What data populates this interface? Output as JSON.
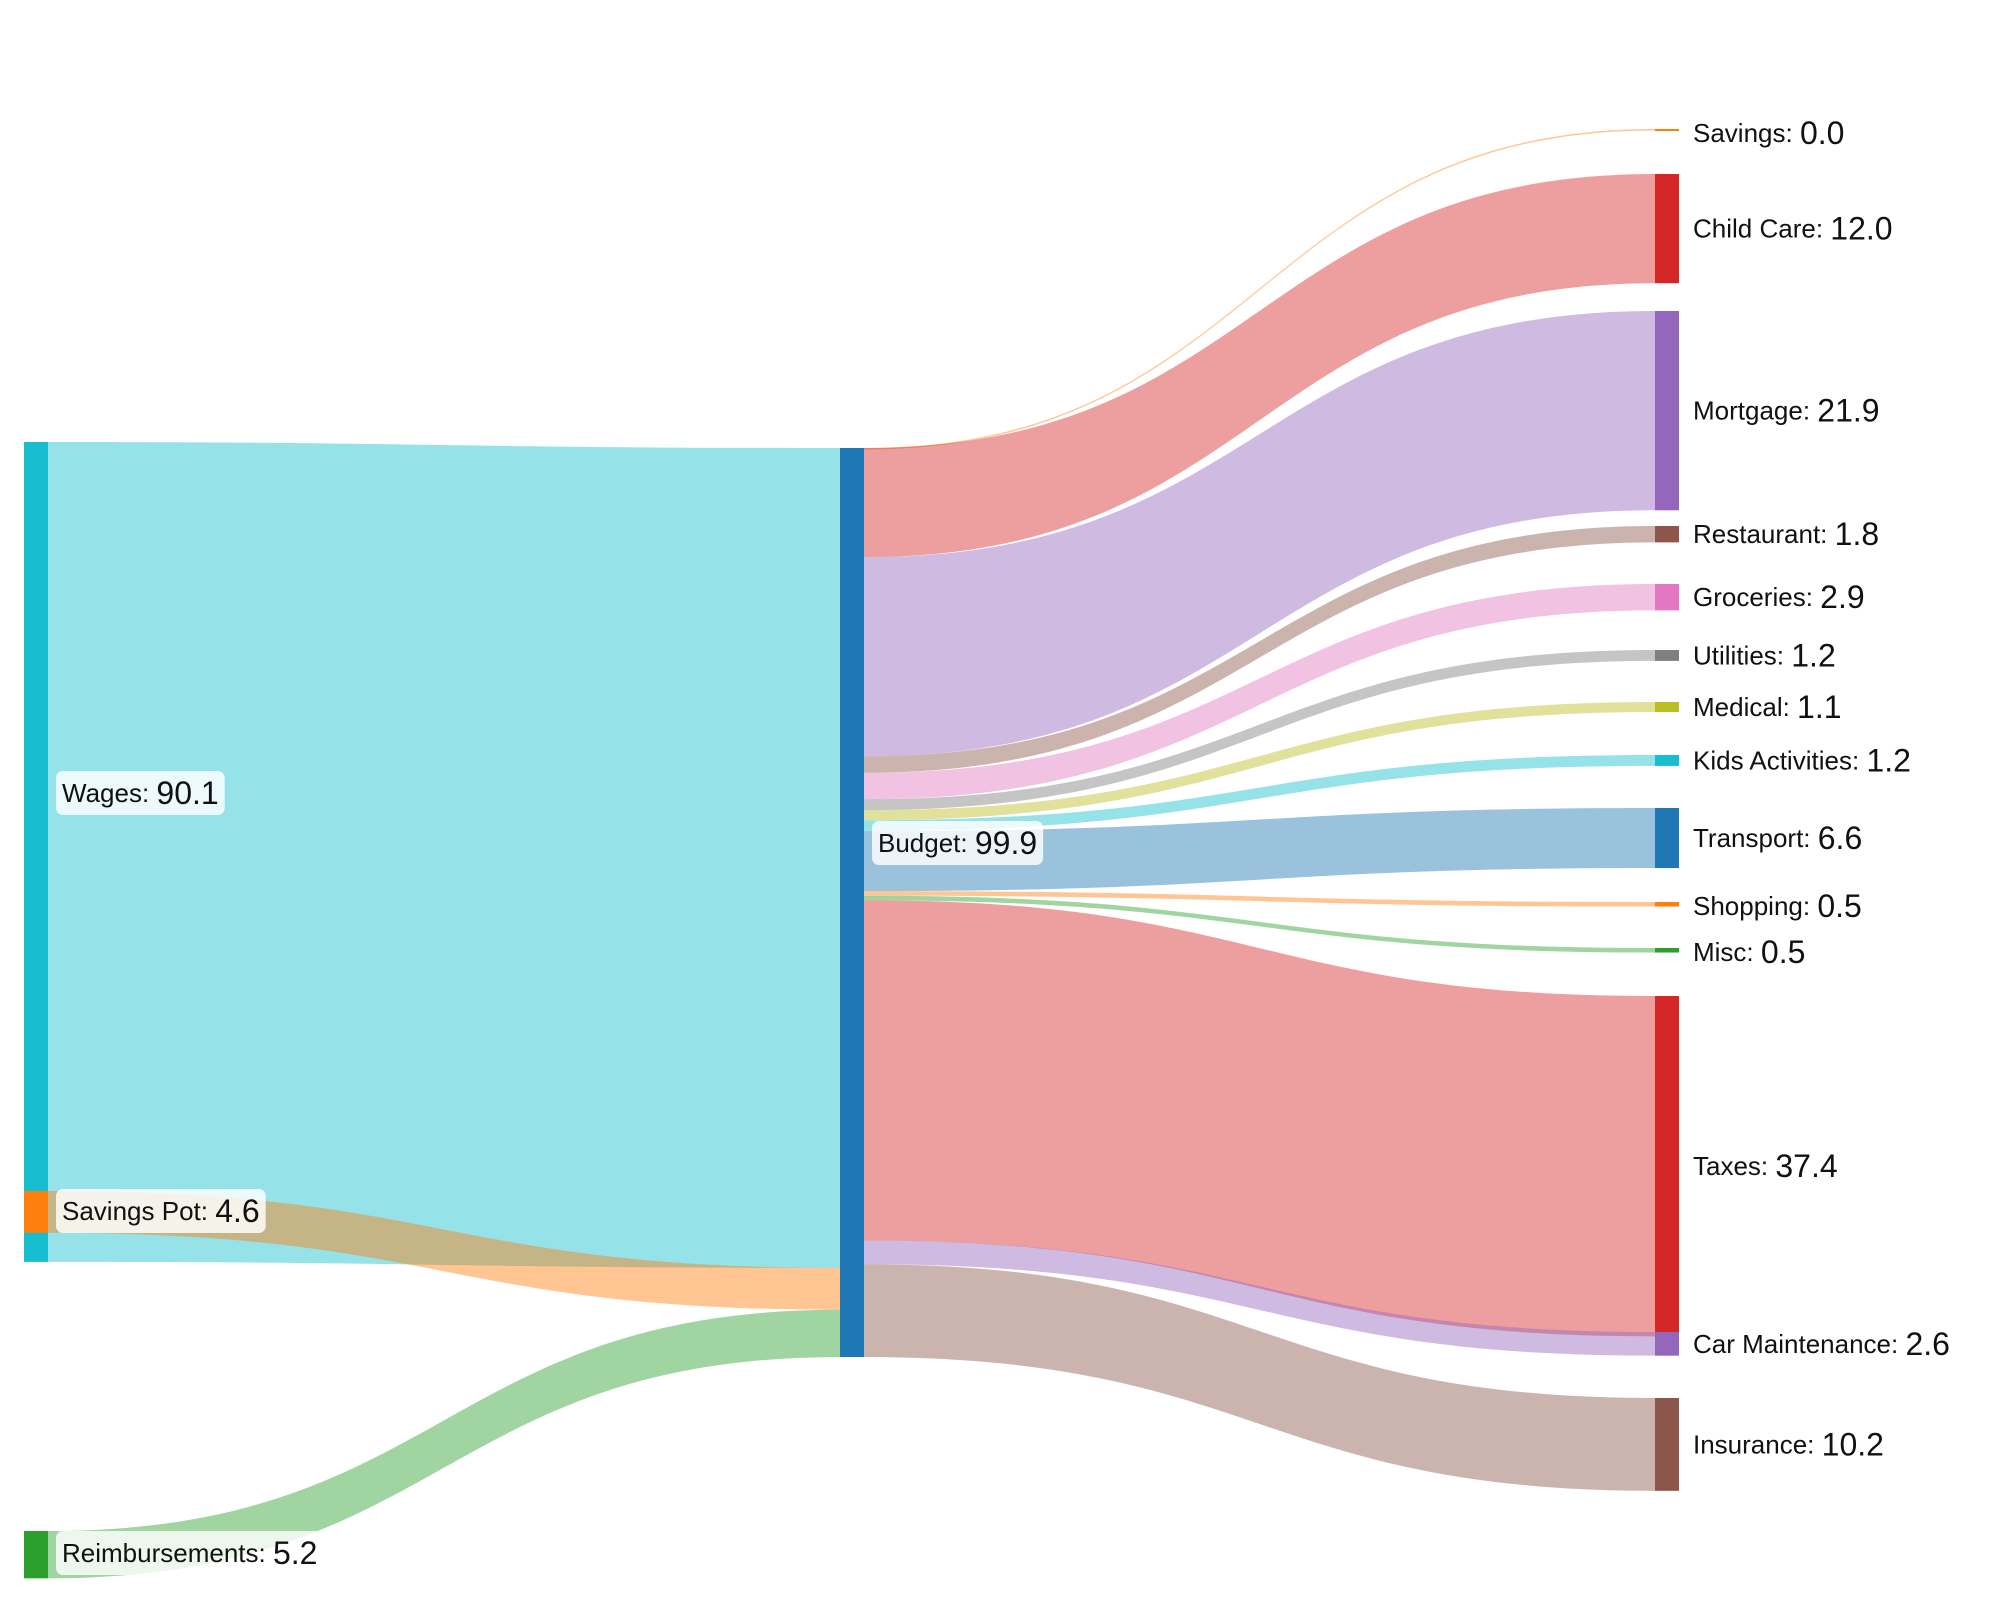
{
  "chart_data": {
    "type": "sankey",
    "title": "",
    "value_format": "0.0",
    "sources": [
      {
        "name": "Wages",
        "value": 90.1,
        "color": "#17becf"
      },
      {
        "name": "Savings Pot",
        "value": 4.6,
        "color": "#ff7f0e"
      },
      {
        "name": "Reimbursements",
        "value": 5.2,
        "color": "#2ca02c"
      }
    ],
    "hub": {
      "name": "Budget",
      "value": 99.9,
      "color": "#1f77b4"
    },
    "targets": [
      {
        "name": "Savings",
        "value": 0.0,
        "color": "#ff7f0e"
      },
      {
        "name": "Child Care",
        "value": 12.0,
        "color": "#d62728"
      },
      {
        "name": "Mortgage",
        "value": 21.9,
        "color": "#9467bd"
      },
      {
        "name": "Restaurant",
        "value": 1.8,
        "color": "#8c564b"
      },
      {
        "name": "Groceries",
        "value": 2.9,
        "color": "#e377c2"
      },
      {
        "name": "Utilities",
        "value": 1.2,
        "color": "#7f7f7f"
      },
      {
        "name": "Medical",
        "value": 1.1,
        "color": "#bcbd22"
      },
      {
        "name": "Kids Activities",
        "value": 1.2,
        "color": "#17becf"
      },
      {
        "name": "Transport",
        "value": 6.6,
        "color": "#1f77b4"
      },
      {
        "name": "Shopping",
        "value": 0.5,
        "color": "#ff7f0e"
      },
      {
        "name": "Misc",
        "value": 0.5,
        "color": "#2ca02c"
      },
      {
        "name": "Taxes",
        "value": 37.4,
        "color": "#d62728"
      },
      {
        "name": "Car Maintenance",
        "value": 2.6,
        "color": "#9467bd"
      },
      {
        "name": "Insurance",
        "value": 10.2,
        "color": "#8c564b"
      }
    ]
  }
}
